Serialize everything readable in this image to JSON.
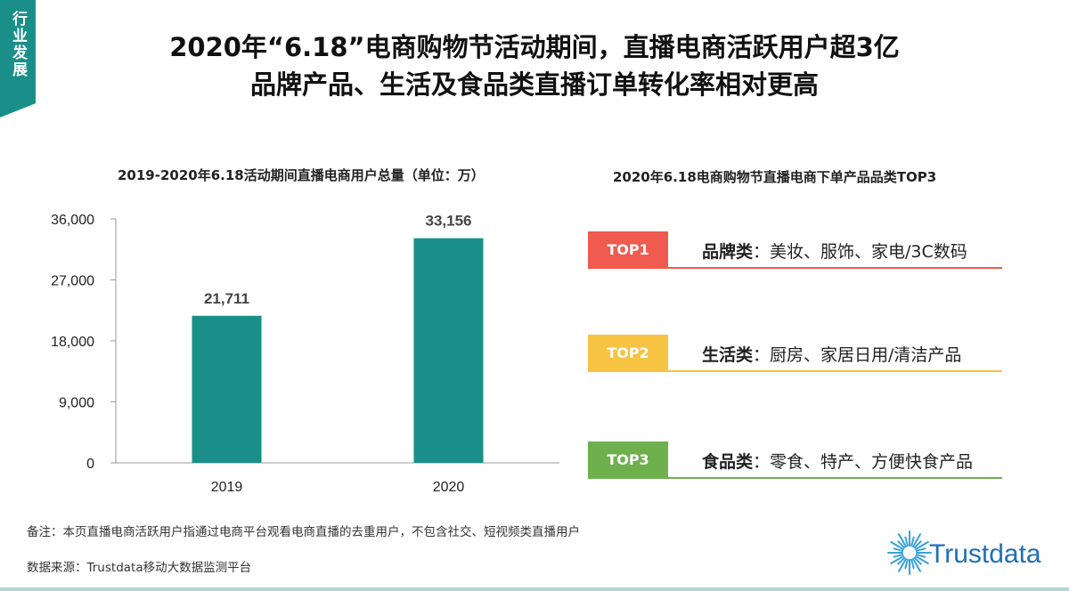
{
  "tag": "行业发展",
  "title_line1": "2020年“6.18”电商购物节活动期间，直播电商活跃用户超3亿",
  "title_line2": "品牌产品、生活及食品类直播订单转化率相对更高",
  "left_subtitle": "2019-2020年6.18活动期间直播电商用户总量（单位：万）",
  "right_subtitle": "2020年6.18电商购物节直播电商下单产品品类TOP3",
  "chart_data": {
    "type": "bar",
    "title": "2019-2020年6.18活动期间直播电商用户总量（单位：万）",
    "categories": [
      "2019",
      "2020"
    ],
    "values": [
      21711,
      33156
    ],
    "value_labels": [
      "21,711",
      "33,156"
    ],
    "yticks": [
      "0",
      "9,000",
      "18,000",
      "27,000",
      "36,000"
    ],
    "ylim": [
      0,
      36000
    ],
    "bar_color": "#1a8f8a",
    "grid": false
  },
  "top3": [
    {
      "badge": "TOP1",
      "category": "品牌类",
      "items": "：美妆、服饰、家电/3C数码",
      "color": "#f05a4f"
    },
    {
      "badge": "TOP2",
      "category": "生活类",
      "items": "：厨房、家居日用/清洁产品",
      "color": "#f6c342"
    },
    {
      "badge": "TOP3",
      "category": "食品类",
      "items": "：零食、特产、方便快食产品",
      "color": "#6fb04e"
    }
  ],
  "note": "备注：本页直播电商活跃用户指通过电商平台观看电商直播的去重用户，不包含社交、短视频类直播用户",
  "source": "数据来源：Trustdata移动大数据监测平台",
  "logo_text": "Trustdata",
  "colors": {
    "accent": "#1a8f8a"
  }
}
